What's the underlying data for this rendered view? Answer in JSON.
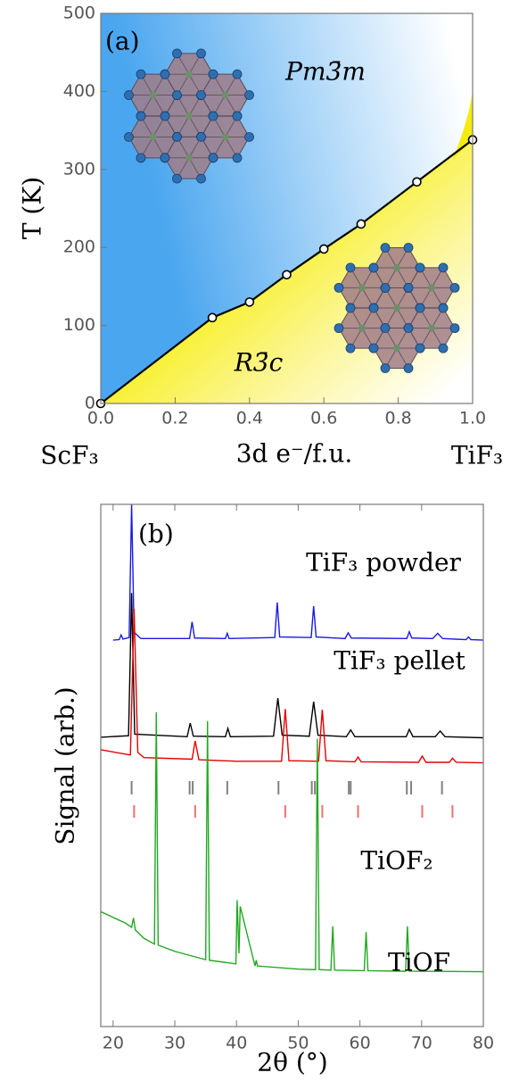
{
  "chart_data": [
    {
      "type": "phase",
      "label": "(a)",
      "xlabel": "3d e⁻/f.u.",
      "ylabel": "T (K)",
      "x_left_label": "ScF₃",
      "x_right_label": "TiF₃",
      "annotations": [
        "Pm3̄m",
        "R3̄c"
      ],
      "x": [
        0,
        0.3,
        0.4,
        0.5,
        0.6,
        0.7,
        0.85,
        1.0
      ],
      "values": [
        0,
        110,
        130,
        165,
        198,
        230,
        284,
        338
      ],
      "color": "#000000",
      "xlim": [
        0,
        1
      ],
      "ylim": [
        0,
        500
      ],
      "xticks": [
        {
          "value": 0,
          "label": "0.0"
        },
        0.2,
        0.4,
        0.6,
        0.8,
        {
          "value": 1,
          "label": "1.0"
        }
      ],
      "yticks": [
        0,
        100,
        200,
        300,
        400,
        500
      ]
    },
    {
      "type": "line",
      "label": "(b)",
      "xlabel": "2θ (°)",
      "ylabel": "Signal (arb.)",
      "xlim": [
        18,
        80
      ],
      "ylim": [
        0,
        100
      ],
      "xticks": [
        20,
        30,
        40,
        50,
        60,
        70,
        80
      ],
      "series": [
        {
          "name": "TiF₃ powder",
          "color": "#1a1ae6",
          "x": [
            20,
            21,
            21.3,
            21.6,
            22.6,
            23.0,
            23.4,
            24.5,
            32.4,
            32.8,
            33.2,
            38.2,
            38.5,
            38.8,
            46.2,
            46.6,
            47.0,
            52.1,
            52.5,
            52.9,
            57.6,
            58.1,
            58.6,
            67.6,
            68.0,
            68.4,
            71.8,
            72.6,
            73.4,
            77.2,
            77.6,
            78,
            80
          ],
          "values": [
            74.0,
            74.1,
            75.0,
            74.2,
            74.5,
            100,
            75.5,
            74.3,
            74.3,
            77.5,
            74.4,
            74.3,
            75.3,
            74.3,
            74.5,
            81.2,
            74.6,
            74.5,
            80.5,
            74.6,
            74.3,
            75.4,
            74.4,
            74.3,
            75.6,
            74.4,
            74.3,
            75.3,
            74.3,
            74.1,
            74.6,
            74.1,
            74.0
          ]
        },
        {
          "name": "TiF₃ pellet",
          "color": "#000000",
          "x": [
            18,
            22.5,
            23.0,
            23.5,
            32.0,
            32.5,
            33.0,
            38.2,
            38.6,
            39.0,
            46.0,
            46.7,
            47.4,
            51.8,
            52.5,
            53.2,
            57.8,
            58.5,
            59.2,
            67.5,
            68.0,
            68.6,
            72.2,
            73.0,
            73.8,
            80
          ],
          "values": [
            55.4,
            55.7,
            83.0,
            56.0,
            55.5,
            58.1,
            55.6,
            55.5,
            57.1,
            55.5,
            55.6,
            62.9,
            55.8,
            55.6,
            62.2,
            55.8,
            55.5,
            56.8,
            55.5,
            55.5,
            56.9,
            55.5,
            55.5,
            56.6,
            55.5,
            55.3
          ]
        },
        {
          "name": "TiOF₂",
          "color": "#e60000",
          "x": [
            18,
            22.8,
            23.4,
            24.0,
            25,
            32.8,
            33.3,
            33.9,
            40,
            47.3,
            47.9,
            48.5,
            53.3,
            53.9,
            54.5,
            59.2,
            59.7,
            60.2,
            69.5,
            70.1,
            70.7,
            74.5,
            75.0,
            75.6,
            80
          ],
          "values": [
            53.0,
            52.0,
            80.0,
            52.5,
            51.5,
            51.2,
            54.7,
            51.1,
            50.8,
            50.8,
            60.8,
            50.9,
            50.8,
            60.7,
            50.9,
            50.7,
            51.6,
            50.7,
            50.6,
            51.8,
            50.6,
            50.6,
            51.4,
            50.6,
            50.5
          ]
        },
        {
          "name": "TiOF",
          "color": "#22a822",
          "x": [
            18,
            22,
            23.0,
            23.3,
            23.6,
            25,
            26.7,
            27.0,
            27.3,
            30,
            35.0,
            35.3,
            35.6,
            39.9,
            40.1,
            40.4,
            40.6,
            43.0,
            43.2,
            43.4,
            50,
            52.8,
            53.1,
            53.4,
            55.3,
            55.6,
            55.9,
            60.7,
            61.0,
            61.3,
            67.4,
            67.7,
            68.0,
            80
          ],
          "values": [
            22.0,
            19.8,
            19.0,
            20.8,
            18.5,
            16.9,
            15.8,
            60.2,
            15.6,
            14.4,
            12.8,
            58.5,
            12.7,
            12.0,
            24.2,
            14.0,
            23.0,
            11.6,
            12.7,
            11.6,
            11.0,
            10.9,
            55.1,
            10.9,
            10.8,
            19.2,
            10.8,
            10.7,
            18.1,
            10.7,
            10.6,
            19.2,
            10.6,
            10.5
          ]
        }
      ],
      "reference_lines": [
        {
          "color": "#808080",
          "x": [
            23.0,
            32.4,
            32.9,
            38.5,
            46.8,
            52.2,
            52.7,
            58.2,
            58.5,
            67.6,
            68.3,
            73.3
          ]
        },
        {
          "color": "#f07070",
          "x": [
            23.4,
            33.3,
            47.9,
            53.9,
            59.7,
            70.1,
            75.0
          ]
        }
      ]
    }
  ]
}
